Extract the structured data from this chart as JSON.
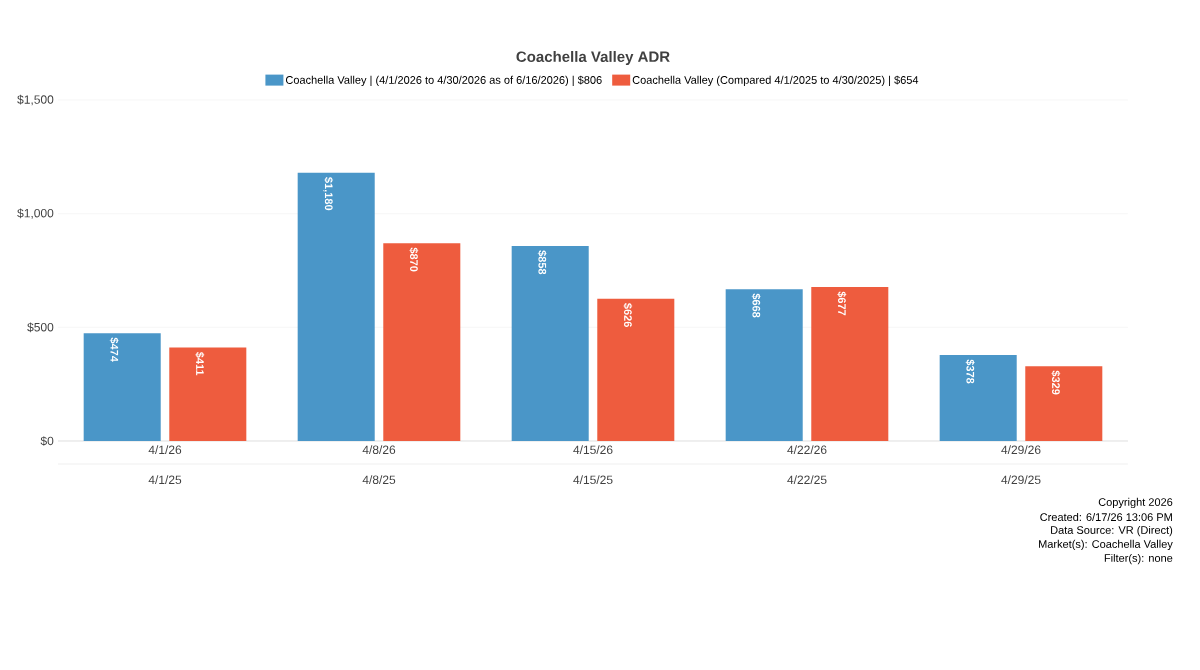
{
  "chart_data": {
    "type": "bar",
    "title": "Coachella Valley ADR",
    "categories": [
      "4/1/26",
      "4/8/26",
      "4/15/26",
      "4/22/26",
      "4/29/26"
    ],
    "series": [
      {
        "name": "Coachella Valley | (4/1/2026 to 4/30/2026 as of 6/16/2026) | $806",
        "color": "#4a96c8",
        "values": [
          474,
          1180,
          858,
          668,
          378
        ],
        "value_labels": [
          "$474",
          "$1,180",
          "$858",
          "$668",
          "$378"
        ]
      },
      {
        "name": "Coachella Valley (Compared 4/1/2025 to 4/30/2025) | $654",
        "color": "#ee5c3e",
        "values": [
          411,
          870,
          626,
          677,
          329
        ],
        "value_labels": [
          "$411",
          "$870",
          "$626",
          "$677",
          "$329"
        ]
      }
    ],
    "ylim": [
      0,
      1500
    ],
    "yticks": [
      {
        "value": 0,
        "label": "$0"
      },
      {
        "value": 500,
        "label": "$500"
      },
      {
        "value": 1000,
        "label": "$1,000"
      },
      {
        "value": 1500,
        "label": "$1,500"
      }
    ],
    "grid": "y",
    "legend": "top",
    "annotations": [
      "4/1/25",
      "4/8/25",
      "4/15/25",
      "4/22/25",
      "4/29/25",
      "Copyright 2026",
      "Created: 6/17/26 13:06 PM",
      "Data Source: VR (Direct)",
      "Market(s):  Coachella Valley",
      "Filter(s): none"
    ]
  }
}
